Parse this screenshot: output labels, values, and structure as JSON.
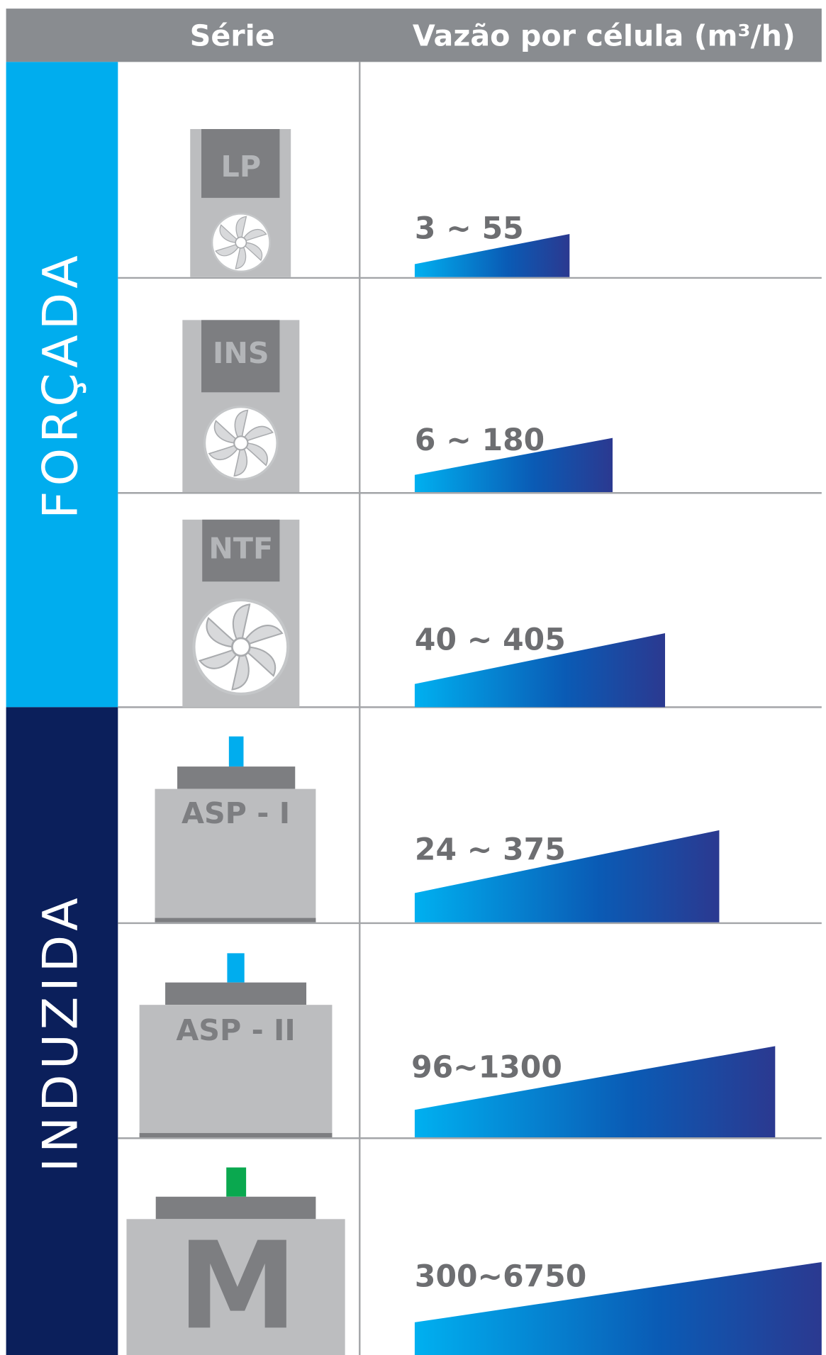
{
  "header": {
    "series_label": "Série",
    "flow_label": "Vazão por célula (m³/h)"
  },
  "groups": [
    {
      "label": "FORÇADA",
      "rows": [
        {
          "series": "LP",
          "range": "3 ~ 55"
        },
        {
          "series": "INS",
          "range": "6 ~ 180"
        },
        {
          "series": "NTF",
          "range": "40 ~ 405"
        }
      ]
    },
    {
      "label": "INDUZIDA",
      "rows": [
        {
          "series": "ASP - I",
          "range": "24 ~ 375"
        },
        {
          "series": "ASP - II",
          "range": "96~1300"
        },
        {
          "series": "M",
          "range": "300~6750"
        }
      ]
    }
  ]
}
